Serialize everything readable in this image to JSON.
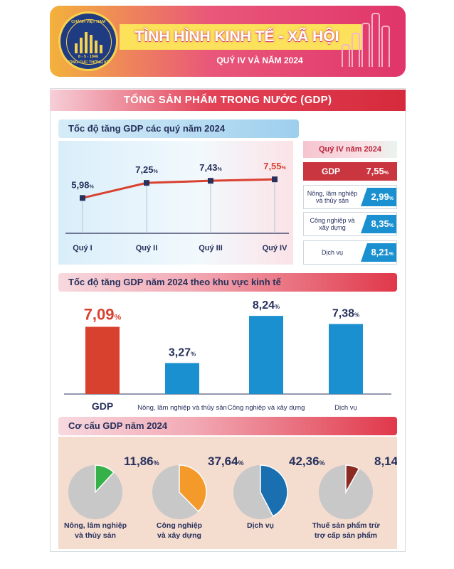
{
  "header": {
    "logo_lines": [
      "CHÀNH VIỆT NAM",
      "8 - 5 - 1946",
      "TỔNG CỤC THỐNG KÊ"
    ],
    "title": "TÌNH HÌNH KINH TẾ - XÃ HỘI",
    "subtitle": "QUÝ IV VÀ NĂM 2024"
  },
  "section_title": "TỔNG SẢN PHẨM TRONG NƯỚC (GDP)",
  "quarterly": {
    "heading": "Tốc độ tăng GDP các quý năm 2024",
    "right_panel": {
      "title": "Quý IV năm 2024",
      "gdp_label": "GDP",
      "gdp_value": "7,55",
      "rows": [
        {
          "label": "Nông, lâm nghiệp và thủy sản",
          "value": "2,99"
        },
        {
          "label": "Công nghiệp và xây dựng",
          "value": "8,35"
        },
        {
          "label": "Dịch vụ",
          "value": "8,21"
        }
      ]
    }
  },
  "sector": {
    "heading": "Tốc độ tăng GDP năm 2024 theo khu vực kinh tế"
  },
  "structure": {
    "heading": "Cơ cấu GDP năm 2024"
  },
  "unit": "%",
  "colors": {
    "red": "#d9412f",
    "blue": "#1a90d0",
    "orange": "#f39a2a",
    "green": "#36b14a",
    "brown": "#8b2a22",
    "grey": "#c8c8c8",
    "line": "#d9412f"
  },
  "chart_data": [
    {
      "type": "line",
      "title": "Tốc độ tăng GDP các quý năm 2024",
      "categories": [
        "Quý I",
        "Quý II",
        "Quý III",
        "Quý IV"
      ],
      "values": [
        5.98,
        7.25,
        7.43,
        7.55
      ],
      "labels": [
        "5,98",
        "7,25",
        "7,43",
        "7,55"
      ],
      "ylim": [
        3,
        9
      ]
    },
    {
      "type": "bar",
      "title": "Tốc độ tăng GDP năm 2024 theo khu vực kinh tế",
      "categories": [
        "GDP",
        "Nông, lâm nghiệp và thủy sản",
        "Công nghiệp và xây dựng",
        "Dịch vụ"
      ],
      "values": [
        7.09,
        3.27,
        8.24,
        7.38
      ],
      "labels": [
        "7,09",
        "3,27",
        "8,24",
        "7,38"
      ],
      "ylim": [
        0,
        9
      ]
    },
    {
      "type": "pie",
      "title": "Cơ cấu GDP năm 2024",
      "slices": [
        {
          "label": "Nông, lâm nghiệp và thủy sản",
          "value": 11.86,
          "text": "11,86",
          "color": "#36b14a"
        },
        {
          "label": "Công nghiệp và xây dựng",
          "value": 37.64,
          "text": "37,64",
          "color": "#f39a2a"
        },
        {
          "label": "Dịch vụ",
          "value": 42.36,
          "text": "42,36",
          "color": "#1a6fb0"
        },
        {
          "label": "Thuế sản phẩm trừ trợ cấp sản phẩm",
          "value": 8.14,
          "text": "8,14",
          "color": "#8b2a22"
        }
      ],
      "label_lines": [
        [
          "Nông, lâm nghiệp",
          "và thủy sản"
        ],
        [
          "Công nghiệp",
          "và xây dựng"
        ],
        [
          "Dịch vụ"
        ],
        [
          "Thuế sản phẩm trừ",
          "trợ cấp sản phẩm"
        ]
      ]
    }
  ]
}
